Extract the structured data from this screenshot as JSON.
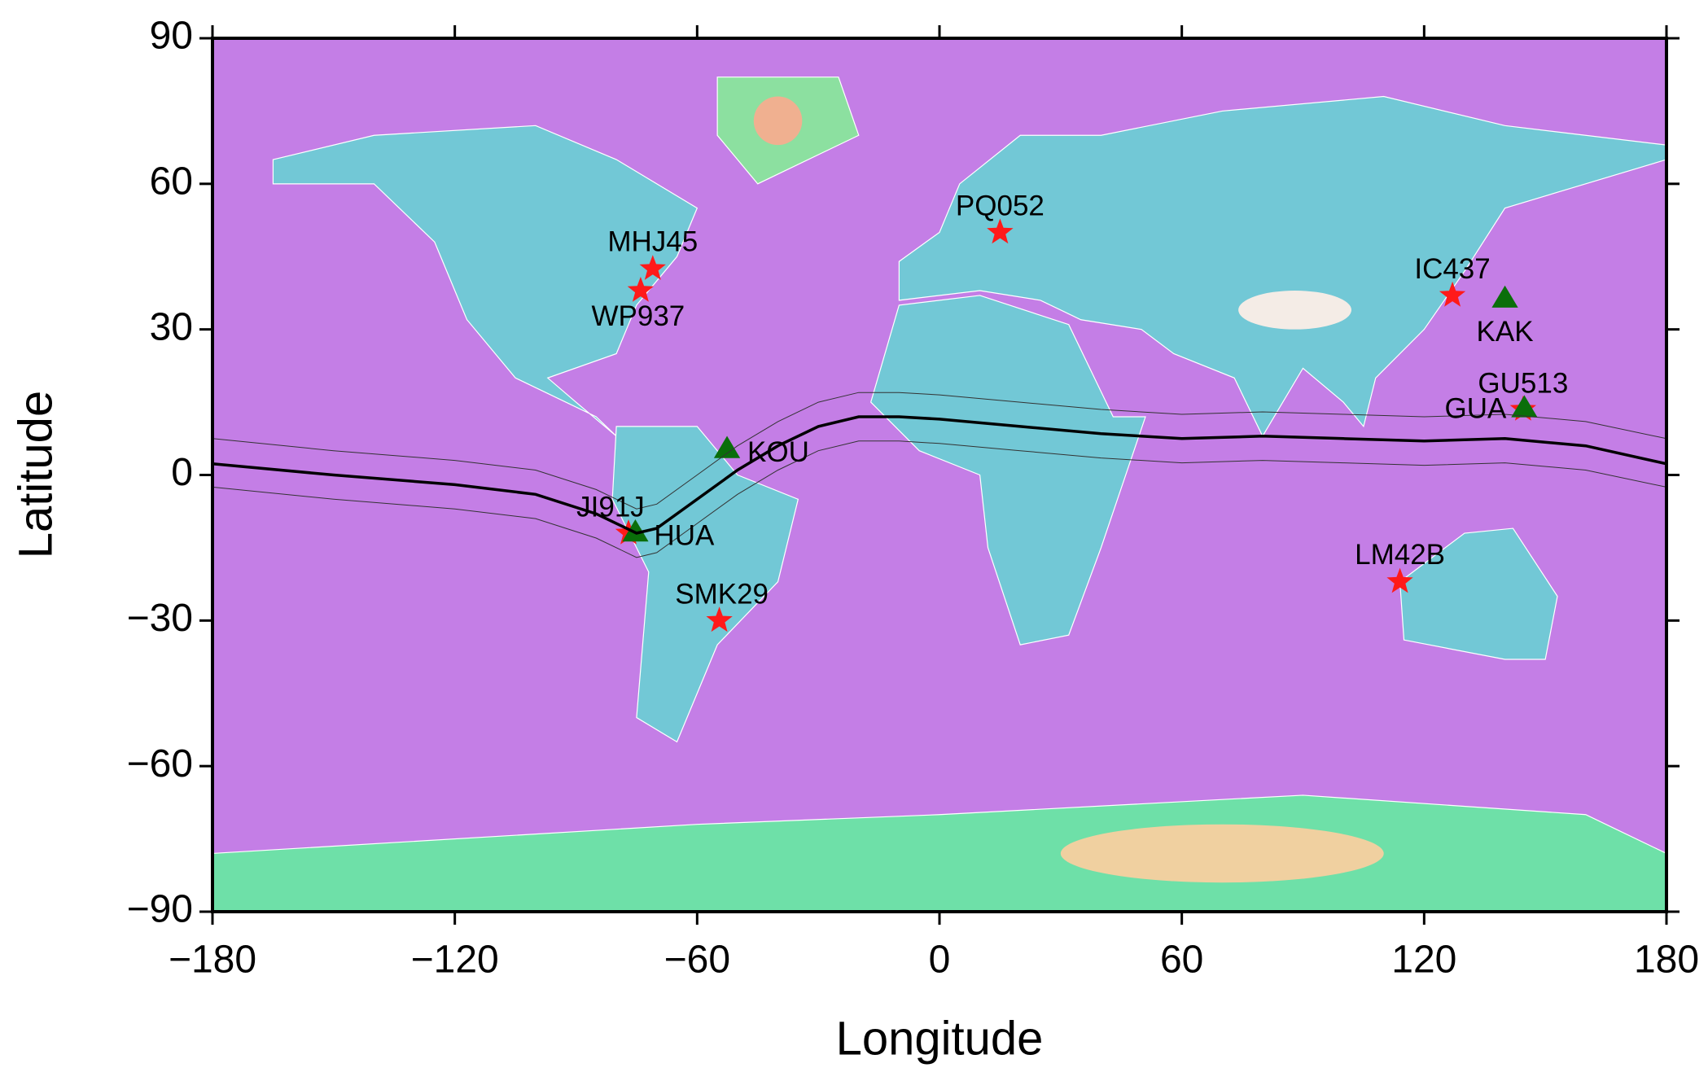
{
  "chart_data": {
    "type": "scatter",
    "xlabel": "Longitude",
    "ylabel": "Latitude",
    "xlim": [
      -180,
      180
    ],
    "ylim": [
      -90,
      90
    ],
    "xticks": [
      {
        "value": -180,
        "label": "−180"
      },
      {
        "value": -120,
        "label": "−120"
      },
      {
        "value": -60,
        "label": "−60"
      },
      0,
      60,
      120,
      180
    ],
    "yticks": [
      {
        "value": -90,
        "label": "−90"
      },
      {
        "value": -60,
        "label": "−60"
      },
      {
        "value": -30,
        "label": "−30"
      },
      0,
      30,
      60,
      90
    ],
    "series": [
      {
        "marker": "star",
        "color": "#ff1a1a",
        "labels": [
          "MHJ45",
          "WP937",
          "PQ052",
          "IC437",
          "GU513",
          "JI91J",
          "SMK29",
          "LM42B"
        ],
        "x": [
          -71,
          -74,
          15,
          127,
          144.5,
          -77,
          -54.5,
          114
        ],
        "values": [
          42.5,
          38,
          50,
          37,
          13.5,
          -12,
          -30,
          -22
        ]
      },
      {
        "marker": "triangle",
        "color": "#0a6e0a",
        "labels": [
          "KAK",
          "GUA",
          "KOU",
          "HUA"
        ],
        "x": [
          140,
          144.8,
          -52.6,
          -75.3
        ],
        "values": [
          36.2,
          13.6,
          5.2,
          -12
        ]
      },
      {
        "marker": "line",
        "color": "#000000",
        "width": 3.5,
        "x": [
          -180,
          -150,
          -120,
          -100,
          -85,
          -75,
          -70,
          -60,
          -50,
          -40,
          -30,
          -20,
          -10,
          0,
          20,
          40,
          60,
          80,
          100,
          120,
          140,
          160,
          180
        ],
        "values": [
          2.3,
          0,
          -2,
          -4,
          -8,
          -12,
          -11,
          -5,
          1,
          6,
          10,
          12,
          12,
          11.5,
          10,
          8.5,
          7.5,
          8,
          7.5,
          7,
          7.5,
          6,
          2.3
        ]
      },
      {
        "marker": "line",
        "color": "#333333",
        "width": 1,
        "x": [
          -180,
          -150,
          -120,
          -100,
          -85,
          -75,
          -70,
          -60,
          -50,
          -40,
          -30,
          -20,
          -10,
          0,
          20,
          40,
          60,
          80,
          100,
          120,
          140,
          160,
          180
        ],
        "values": [
          7.5,
          5,
          3,
          1,
          -3,
          -7,
          -6,
          0,
          6,
          11,
          15,
          17,
          17,
          16.5,
          15,
          13.5,
          12.5,
          13,
          12.5,
          12,
          12.5,
          11,
          7.5
        ]
      },
      {
        "marker": "line",
        "color": "#333333",
        "width": 1,
        "x": [
          -180,
          -150,
          -120,
          -100,
          -85,
          -75,
          -70,
          -60,
          -50,
          -40,
          -30,
          -20,
          -10,
          0,
          20,
          40,
          60,
          80,
          100,
          120,
          140,
          160,
          180
        ],
        "values": [
          -2.5,
          -5,
          -7,
          -9,
          -13,
          -17,
          -16,
          -10,
          -4,
          1,
          5,
          7,
          7,
          6.5,
          5,
          3.5,
          2.5,
          3,
          2.5,
          2,
          2.5,
          1,
          -2.5
        ]
      }
    ]
  }
}
